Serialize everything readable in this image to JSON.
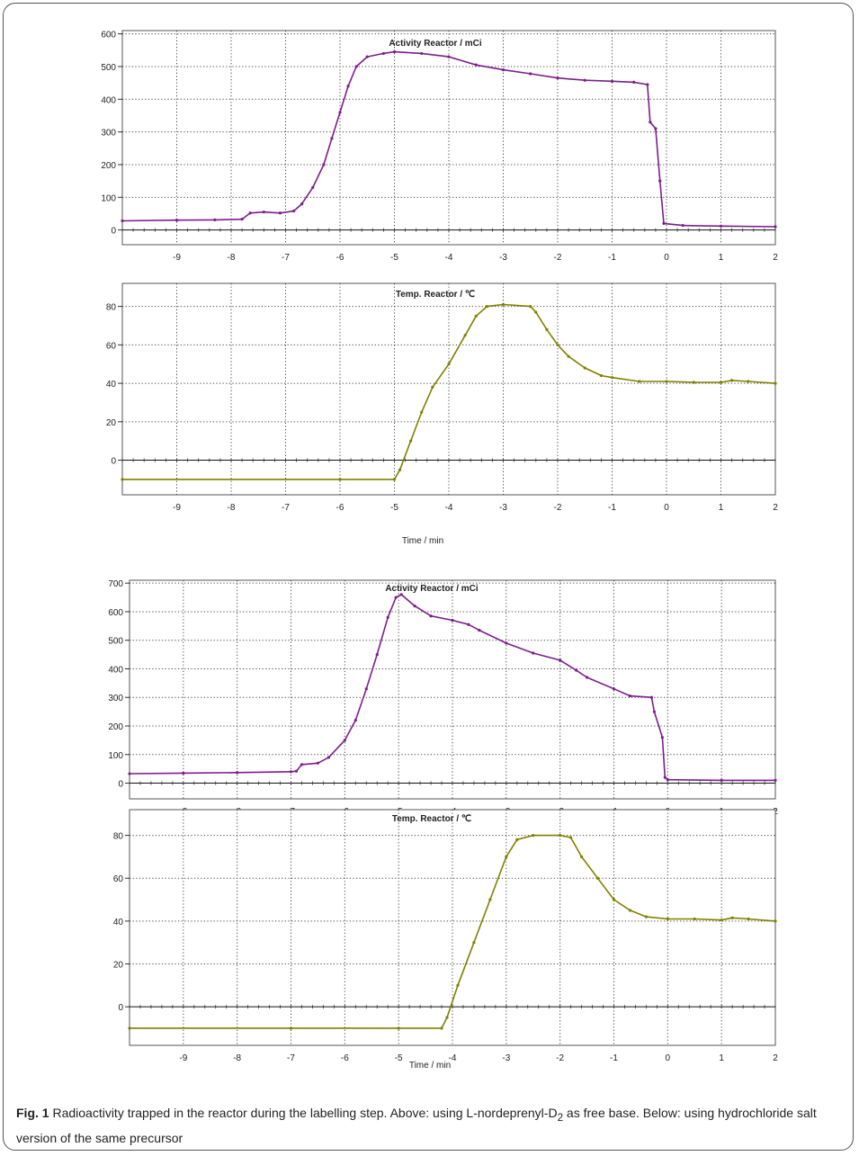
{
  "caption": {
    "fig_label": "Fig. 1",
    "text_part1": " Radioactivity trapped in the reactor during the labelling step. Above: using L-nordeprenyl-D",
    "subscript": "2",
    "text_part2": " as free base. Below: using hydrochloride salt version of the same precursor"
  },
  "colors": {
    "activity": "#7a1f8a",
    "temperature": "#808000",
    "grid": "#444444",
    "frame": "#555555"
  },
  "chart_data": [
    {
      "type": "line",
      "panel": "Above (free base)",
      "title": "Activity Reactor / mCi",
      "xlabel": "",
      "xlim": [
        -10,
        2
      ],
      "ylim": [
        -45,
        610
      ],
      "xticks": [
        -9,
        -8,
        -7,
        -6,
        -5,
        -4,
        -3,
        -2,
        -1,
        0,
        1,
        2
      ],
      "yticks": [
        0,
        100,
        200,
        300,
        400,
        500,
        600
      ],
      "grid": true,
      "series": [
        {
          "color": "#7a1f8a",
          "points": [
            [
              -10,
              28
            ],
            [
              -9,
              30
            ],
            [
              -8.3,
              31
            ],
            [
              -7.8,
              33
            ],
            [
              -7.65,
              52
            ],
            [
              -7.4,
              55
            ],
            [
              -7.1,
              52
            ],
            [
              -6.85,
              58
            ],
            [
              -6.7,
              80
            ],
            [
              -6.5,
              130
            ],
            [
              -6.3,
              200
            ],
            [
              -6.15,
              280
            ],
            [
              -6.0,
              360
            ],
            [
              -5.85,
              440
            ],
            [
              -5.7,
              500
            ],
            [
              -5.5,
              530
            ],
            [
              -5.2,
              540
            ],
            [
              -5.0,
              545
            ],
            [
              -4.5,
              540
            ],
            [
              -4.0,
              530
            ],
            [
              -3.5,
              505
            ],
            [
              -3.0,
              490
            ],
            [
              -2.5,
              478
            ],
            [
              -2.0,
              465
            ],
            [
              -1.5,
              458
            ],
            [
              -1.0,
              455
            ],
            [
              -0.6,
              452
            ],
            [
              -0.35,
              445
            ],
            [
              -0.3,
              330
            ],
            [
              -0.2,
              310
            ],
            [
              -0.12,
              150
            ],
            [
              -0.05,
              20
            ],
            [
              0.3,
              14
            ],
            [
              1,
              12
            ],
            [
              2,
              10
            ]
          ]
        }
      ]
    },
    {
      "type": "line",
      "panel": "Above (free base)",
      "title": "Temp. Reactor / ℃",
      "xlabel": "Time / min",
      "xlim": [
        -10,
        2
      ],
      "ylim": [
        -18,
        92
      ],
      "xticks": [
        -9,
        -8,
        -7,
        -6,
        -5,
        -4,
        -3,
        -2,
        -1,
        0,
        1,
        2
      ],
      "yticks": [
        0,
        20,
        40,
        60,
        80
      ],
      "grid": true,
      "series": [
        {
          "color": "#808000",
          "points": [
            [
              -10,
              -10
            ],
            [
              -6,
              -10
            ],
            [
              -5.0,
              -10
            ],
            [
              -4.9,
              -5
            ],
            [
              -4.7,
              10
            ],
            [
              -4.5,
              25
            ],
            [
              -4.3,
              38
            ],
            [
              -4.0,
              50
            ],
            [
              -3.7,
              65
            ],
            [
              -3.5,
              75
            ],
            [
              -3.3,
              80
            ],
            [
              -3.0,
              81
            ],
            [
              -2.5,
              80
            ],
            [
              -2.4,
              77
            ],
            [
              -2.2,
              68
            ],
            [
              -2.0,
              60
            ],
            [
              -1.8,
              54
            ],
            [
              -1.5,
              48
            ],
            [
              -1.2,
              44
            ],
            [
              -1.0,
              43
            ],
            [
              -0.5,
              41
            ],
            [
              0,
              41
            ],
            [
              0.5,
              40.5
            ],
            [
              1,
              40.5
            ],
            [
              1.2,
              41.5
            ],
            [
              1.5,
              41
            ],
            [
              2,
              40
            ]
          ]
        }
      ]
    },
    {
      "type": "line",
      "panel": "Below (hydrochloride salt)",
      "title": "Activity Reactor / mCi",
      "xlabel": "",
      "xlim": [
        -10,
        2
      ],
      "ylim": [
        -55,
        710
      ],
      "xticks": [
        -9,
        -8,
        -7,
        -6,
        -5,
        -4,
        -3,
        -2,
        -1,
        0,
        1,
        2
      ],
      "yticks": [
        0,
        100,
        200,
        300,
        400,
        500,
        600,
        700
      ],
      "grid": true,
      "series": [
        {
          "color": "#7a1f8a",
          "points": [
            [
              -10,
              33
            ],
            [
              -9,
              35
            ],
            [
              -8,
              37
            ],
            [
              -7,
              40
            ],
            [
              -6.9,
              42
            ],
            [
              -6.8,
              65
            ],
            [
              -6.5,
              70
            ],
            [
              -6.3,
              90
            ],
            [
              -6.0,
              150
            ],
            [
              -5.8,
              220
            ],
            [
              -5.6,
              330
            ],
            [
              -5.4,
              450
            ],
            [
              -5.2,
              580
            ],
            [
              -5.05,
              650
            ],
            [
              -4.95,
              660
            ],
            [
              -4.7,
              620
            ],
            [
              -4.4,
              585
            ],
            [
              -4.0,
              570
            ],
            [
              -3.7,
              555
            ],
            [
              -3.5,
              535
            ],
            [
              -3.0,
              490
            ],
            [
              -2.5,
              455
            ],
            [
              -2.0,
              430
            ],
            [
              -1.7,
              395
            ],
            [
              -1.5,
              370
            ],
            [
              -1.0,
              330
            ],
            [
              -0.7,
              305
            ],
            [
              -0.3,
              300
            ],
            [
              -0.25,
              250
            ],
            [
              -0.1,
              160
            ],
            [
              -0.05,
              20
            ],
            [
              0,
              12
            ],
            [
              1,
              10
            ],
            [
              2,
              10
            ]
          ]
        }
      ]
    },
    {
      "type": "line",
      "panel": "Below (hydrochloride salt)",
      "title": "Temp. Reactor / ℃",
      "xlabel": "Time / min",
      "xlim": [
        -10,
        2
      ],
      "ylim": [
        -18,
        92
      ],
      "xticks": [
        -9,
        -8,
        -7,
        -6,
        -5,
        -4,
        -3,
        -2,
        -1,
        0,
        1,
        2
      ],
      "yticks": [
        0,
        20,
        40,
        60,
        80
      ],
      "grid": true,
      "series": [
        {
          "color": "#808000",
          "points": [
            [
              -10,
              -10
            ],
            [
              -7,
              -10
            ],
            [
              -5,
              -10
            ],
            [
              -4.2,
              -10
            ],
            [
              -4.1,
              -5
            ],
            [
              -3.9,
              10
            ],
            [
              -3.6,
              30
            ],
            [
              -3.3,
              50
            ],
            [
              -3.0,
              70
            ],
            [
              -2.8,
              78
            ],
            [
              -2.5,
              80
            ],
            [
              -2.0,
              80
            ],
            [
              -1.8,
              79
            ],
            [
              -1.6,
              70
            ],
            [
              -1.3,
              60
            ],
            [
              -1.0,
              50
            ],
            [
              -0.7,
              45
            ],
            [
              -0.4,
              42
            ],
            [
              0,
              41
            ],
            [
              0.5,
              41
            ],
            [
              1,
              40.5
            ],
            [
              1.2,
              41.5
            ],
            [
              1.5,
              41
            ],
            [
              2,
              40
            ]
          ]
        }
      ]
    }
  ]
}
